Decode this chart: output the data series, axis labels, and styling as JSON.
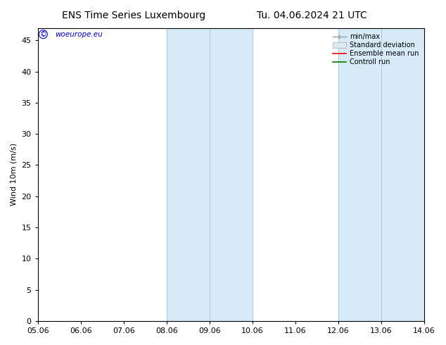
{
  "title_left": "ENS Time Series Luxembourg",
  "title_right": "Tu. 04.06.2024 21 UTC",
  "ylabel": "Wind 10m (m/s)",
  "xlim_dates": [
    "05.06",
    "06.06",
    "07.06",
    "08.06",
    "09.06",
    "10.06",
    "11.06",
    "12.06",
    "13.06",
    "14.06"
  ],
  "xlim": [
    0,
    9
  ],
  "ylim": [
    0,
    47
  ],
  "yticks": [
    0,
    5,
    10,
    15,
    20,
    25,
    30,
    35,
    40,
    45
  ],
  "band1_xstart": 3.0,
  "band1_xend": 5.0,
  "band1_sep": 4.0,
  "band2_xstart": 7.0,
  "band2_xend": 9.0,
  "band2_sep": 8.0,
  "band_color": "#d6eaf8",
  "sep_color": "#a8c8e8",
  "watermark_text": "© woeurope.eu",
  "watermark_color": "#0000cc",
  "legend_labels": [
    "min/max",
    "Standard deviation",
    "Ensemble mean run",
    "Controll run"
  ],
  "legend_colors": [
    "#999999",
    "#c8dce8",
    "#ff0000",
    "#008000"
  ],
  "bg_color": "#ffffff",
  "font_size": 8,
  "title_fontsize": 10
}
